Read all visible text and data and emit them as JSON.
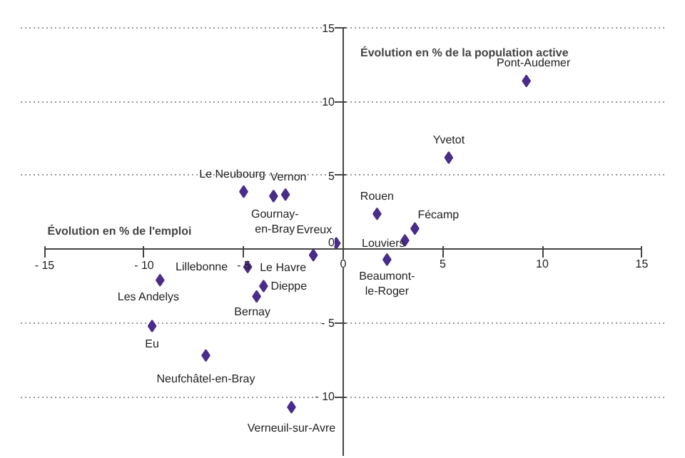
{
  "chart_data": {
    "type": "scatter",
    "xlabel": "Évolution en % de l'emploi",
    "ylabel": "Évolution en % de la population active",
    "x": [
      9.2,
      5.3,
      1.7,
      3.6,
      3.1,
      2.2,
      -0.35,
      -1.5,
      -4.8,
      -4.0,
      -4.35,
      -9.2,
      -9.6,
      -6.9,
      -2.6,
      -5.0,
      -3.5,
      -2.9
    ],
    "values": [
      11.4,
      6.2,
      2.4,
      1.4,
      0.6,
      -0.7,
      0.4,
      -0.4,
      -1.2,
      -2.5,
      -3.2,
      -2.1,
      -5.2,
      -7.2,
      -10.7,
      3.9,
      3.6,
      3.7
    ],
    "color": "#4a2c8a",
    "marker": "diamond",
    "annotations": [
      {
        "text": "Pont-Audemer",
        "x": 9.2,
        "y": 11.4
      },
      {
        "text": "Yvetot",
        "x": 5.3,
        "y": 6.2
      },
      {
        "text": "Rouen",
        "x": 1.7,
        "y": 2.4
      },
      {
        "text": "Fécamp",
        "x": 3.6,
        "y": 1.4
      },
      {
        "text": "Louviers",
        "x": 3.1,
        "y": 0.6
      },
      {
        "text": "Beaumont-\nle-Roger",
        "x": 2.2,
        "y": -0.7
      },
      {
        "text": "Evreux",
        "x": -0.35,
        "y": 0.4
      },
      {
        "text": "Le Havre",
        "x": -1.5,
        "y": -0.4
      },
      {
        "text": "Lillebonne",
        "x": -4.8,
        "y": -1.2
      },
      {
        "text": "Dieppe",
        "x": -4.0,
        "y": -2.5
      },
      {
        "text": "Bernay",
        "x": -4.35,
        "y": -3.2
      },
      {
        "text": "Les Andelys",
        "x": -9.2,
        "y": -2.1
      },
      {
        "text": "Eu",
        "x": -9.6,
        "y": -5.2
      },
      {
        "text": "Neufchâtel-en-Bray",
        "x": -6.9,
        "y": -7.2
      },
      {
        "text": "Verneuil-sur-Avre",
        "x": -2.6,
        "y": -10.7
      },
      {
        "text": "Le Neubourg",
        "x": -5.0,
        "y": 3.9
      },
      {
        "text": "Gournay-\nen-Bray",
        "x": -3.5,
        "y": 3.6
      },
      {
        "text": "Vernon",
        "x": -2.9,
        "y": 3.7
      }
    ],
    "xlim": [
      -15,
      15
    ],
    "ylim": [
      -14,
      15
    ],
    "xticks": [
      {
        "value": -15,
        "label": "- 15"
      },
      {
        "value": -10,
        "label": "- 10"
      },
      {
        "value": -5,
        "label": "- 5"
      },
      0,
      5,
      10,
      15
    ],
    "yticks": [
      {
        "value": -10,
        "label": "- 10"
      },
      {
        "value": -5,
        "label": "- 5"
      },
      0,
      5,
      10,
      15
    ],
    "grid": "y"
  }
}
